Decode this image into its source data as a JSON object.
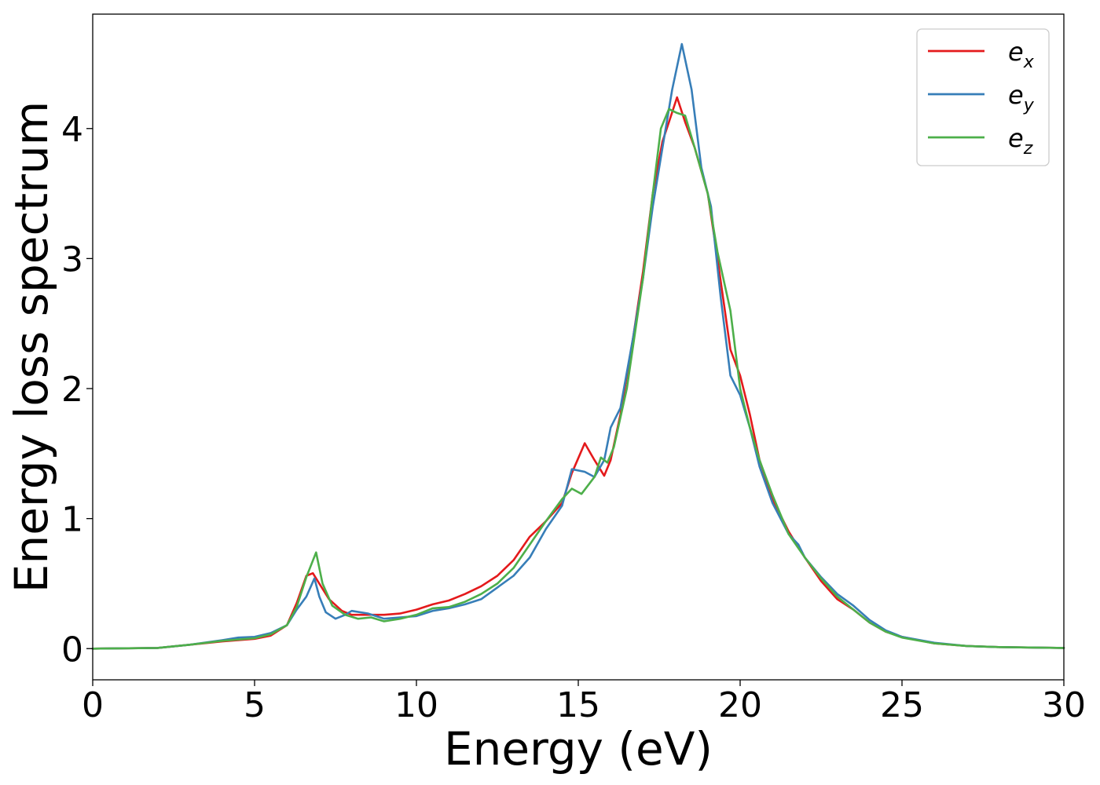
{
  "chart_data": {
    "type": "line",
    "xlabel": "Energy (eV)",
    "ylabel": "Energy loss spectrum",
    "xlim": [
      0,
      30
    ],
    "ylim": [
      -0.24,
      4.88
    ],
    "xticks": [
      0,
      5,
      10,
      15,
      20,
      25,
      30
    ],
    "yticks": [
      0,
      1,
      2,
      3,
      4
    ],
    "grid": false,
    "legend_position": "top-right",
    "series": [
      {
        "name": "e_x",
        "legend_base": "e",
        "legend_sub": "x",
        "color": "#e41a1c",
        "points": [
          [
            0,
            0
          ],
          [
            2,
            0.005
          ],
          [
            3,
            0.03
          ],
          [
            4,
            0.055
          ],
          [
            5,
            0.075
          ],
          [
            5.5,
            0.1
          ],
          [
            6,
            0.18
          ],
          [
            6.3,
            0.35
          ],
          [
            6.6,
            0.56
          ],
          [
            6.8,
            0.58
          ],
          [
            7.0,
            0.5
          ],
          [
            7.3,
            0.38
          ],
          [
            7.7,
            0.29
          ],
          [
            8,
            0.26
          ],
          [
            8.5,
            0.26
          ],
          [
            9,
            0.26
          ],
          [
            9.5,
            0.27
          ],
          [
            10,
            0.3
          ],
          [
            10.5,
            0.34
          ],
          [
            11,
            0.37
          ],
          [
            11.5,
            0.42
          ],
          [
            12,
            0.48
          ],
          [
            12.5,
            0.56
          ],
          [
            13,
            0.68
          ],
          [
            13.5,
            0.86
          ],
          [
            14,
            0.98
          ],
          [
            14.5,
            1.12
          ],
          [
            14.8,
            1.35
          ],
          [
            15.2,
            1.58
          ],
          [
            15.5,
            1.45
          ],
          [
            15.8,
            1.33
          ],
          [
            16,
            1.45
          ],
          [
            16.3,
            1.8
          ],
          [
            16.7,
            2.4
          ],
          [
            17,
            2.9
          ],
          [
            17.3,
            3.5
          ],
          [
            17.6,
            3.9
          ],
          [
            17.8,
            4.05
          ],
          [
            18.05,
            4.24
          ],
          [
            18.3,
            4.05
          ],
          [
            18.6,
            3.85
          ],
          [
            19,
            3.5
          ],
          [
            19.3,
            3.0
          ],
          [
            19.7,
            2.3
          ],
          [
            20,
            2.1
          ],
          [
            20.3,
            1.8
          ],
          [
            20.6,
            1.45
          ],
          [
            21,
            1.15
          ],
          [
            21.5,
            0.9
          ],
          [
            22,
            0.7
          ],
          [
            22.5,
            0.52
          ],
          [
            23,
            0.38
          ],
          [
            23.5,
            0.3
          ],
          [
            24,
            0.2
          ],
          [
            24.5,
            0.13
          ],
          [
            25,
            0.09
          ],
          [
            26,
            0.04
          ],
          [
            27,
            0.02
          ],
          [
            28,
            0.012
          ],
          [
            30,
            0.005
          ]
        ]
      },
      {
        "name": "e_y",
        "legend_base": "e",
        "legend_sub": "y",
        "color": "#377eb8",
        "points": [
          [
            0,
            0
          ],
          [
            2,
            0.005
          ],
          [
            3,
            0.03
          ],
          [
            4,
            0.065
          ],
          [
            4.5,
            0.085
          ],
          [
            5,
            0.09
          ],
          [
            5.5,
            0.12
          ],
          [
            6,
            0.18
          ],
          [
            6.3,
            0.3
          ],
          [
            6.6,
            0.4
          ],
          [
            6.85,
            0.54
          ],
          [
            7.0,
            0.4
          ],
          [
            7.2,
            0.28
          ],
          [
            7.5,
            0.23
          ],
          [
            7.8,
            0.26
          ],
          [
            8,
            0.29
          ],
          [
            8.5,
            0.27
          ],
          [
            9,
            0.23
          ],
          [
            9.5,
            0.24
          ],
          [
            10,
            0.25
          ],
          [
            10.5,
            0.29
          ],
          [
            11,
            0.31
          ],
          [
            11.5,
            0.34
          ],
          [
            12,
            0.38
          ],
          [
            12.5,
            0.47
          ],
          [
            13,
            0.56
          ],
          [
            13.5,
            0.7
          ],
          [
            14,
            0.92
          ],
          [
            14.5,
            1.1
          ],
          [
            14.8,
            1.38
          ],
          [
            15.2,
            1.36
          ],
          [
            15.5,
            1.32
          ],
          [
            15.8,
            1.45
          ],
          [
            16,
            1.7
          ],
          [
            16.3,
            1.85
          ],
          [
            16.7,
            2.4
          ],
          [
            17,
            2.85
          ],
          [
            17.3,
            3.4
          ],
          [
            17.6,
            3.85
          ],
          [
            17.9,
            4.3
          ],
          [
            18.2,
            4.65
          ],
          [
            18.5,
            4.3
          ],
          [
            18.8,
            3.7
          ],
          [
            19.1,
            3.4
          ],
          [
            19.4,
            2.7
          ],
          [
            19.7,
            2.1
          ],
          [
            20,
            1.95
          ],
          [
            20.3,
            1.7
          ],
          [
            20.6,
            1.4
          ],
          [
            21,
            1.12
          ],
          [
            21.5,
            0.88
          ],
          [
            21.8,
            0.8
          ],
          [
            22,
            0.7
          ],
          [
            22.5,
            0.55
          ],
          [
            23,
            0.42
          ],
          [
            23.5,
            0.33
          ],
          [
            24,
            0.22
          ],
          [
            24.5,
            0.14
          ],
          [
            25,
            0.09
          ],
          [
            26,
            0.045
          ],
          [
            27,
            0.02
          ],
          [
            28,
            0.012
          ],
          [
            30,
            0.005
          ]
        ]
      },
      {
        "name": "e_z",
        "legend_base": "e",
        "legend_sub": "z",
        "color": "#4daf4a",
        "points": [
          [
            0,
            0
          ],
          [
            2,
            0.005
          ],
          [
            3,
            0.03
          ],
          [
            4,
            0.06
          ],
          [
            5,
            0.08
          ],
          [
            5.5,
            0.11
          ],
          [
            6,
            0.18
          ],
          [
            6.3,
            0.32
          ],
          [
            6.6,
            0.55
          ],
          [
            6.9,
            0.74
          ],
          [
            7.1,
            0.5
          ],
          [
            7.4,
            0.33
          ],
          [
            7.8,
            0.26
          ],
          [
            8.2,
            0.23
          ],
          [
            8.6,
            0.24
          ],
          [
            9,
            0.21
          ],
          [
            9.5,
            0.23
          ],
          [
            10,
            0.26
          ],
          [
            10.5,
            0.31
          ],
          [
            11,
            0.32
          ],
          [
            11.5,
            0.36
          ],
          [
            12,
            0.42
          ],
          [
            12.5,
            0.5
          ],
          [
            13,
            0.62
          ],
          [
            13.5,
            0.8
          ],
          [
            14,
            0.98
          ],
          [
            14.5,
            1.15
          ],
          [
            14.8,
            1.23
          ],
          [
            15.1,
            1.19
          ],
          [
            15.5,
            1.32
          ],
          [
            15.7,
            1.47
          ],
          [
            15.9,
            1.43
          ],
          [
            16.1,
            1.55
          ],
          [
            16.5,
            2.0
          ],
          [
            17,
            2.85
          ],
          [
            17.3,
            3.5
          ],
          [
            17.55,
            4.0
          ],
          [
            17.8,
            4.15
          ],
          [
            18.05,
            4.12
          ],
          [
            18.3,
            4.1
          ],
          [
            18.6,
            3.85
          ],
          [
            19,
            3.5
          ],
          [
            19.3,
            3.05
          ],
          [
            19.7,
            2.6
          ],
          [
            20,
            2.0
          ],
          [
            20.3,
            1.7
          ],
          [
            20.6,
            1.45
          ],
          [
            21,
            1.18
          ],
          [
            21.5,
            0.88
          ],
          [
            22,
            0.7
          ],
          [
            22.5,
            0.54
          ],
          [
            23,
            0.4
          ],
          [
            23.5,
            0.3
          ],
          [
            24,
            0.2
          ],
          [
            24.5,
            0.13
          ],
          [
            25,
            0.085
          ],
          [
            26,
            0.04
          ],
          [
            27,
            0.02
          ],
          [
            28,
            0.012
          ],
          [
            30,
            0.005
          ]
        ]
      }
    ]
  }
}
